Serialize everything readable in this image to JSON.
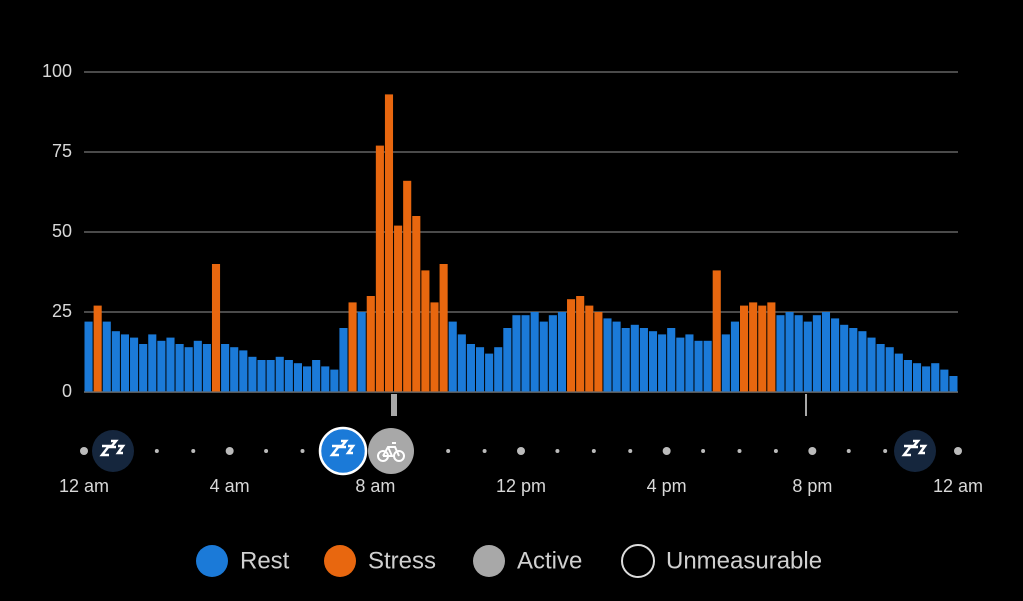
{
  "chart_data": {
    "type": "bar",
    "x": [
      0,
      0.25,
      0.5,
      0.75,
      1,
      1.25,
      1.5,
      1.75,
      2,
      2.25,
      2.5,
      2.75,
      3,
      3.25,
      3.5,
      3.75,
      4,
      4.25,
      4.5,
      4.75,
      5,
      5.25,
      5.5,
      5.75,
      6,
      6.25,
      6.5,
      6.75,
      7,
      7.25,
      7.5,
      7.75,
      8,
      8.25,
      8.5,
      8.75,
      9,
      9.25,
      9.5,
      9.75,
      10,
      10.25,
      10.5,
      10.75,
      11,
      11.25,
      11.5,
      11.75,
      12,
      12.25,
      12.5,
      12.75,
      13,
      13.25,
      13.5,
      13.75,
      14,
      14.25,
      14.5,
      14.75,
      15,
      15.25,
      15.5,
      15.75,
      16,
      16.25,
      16.5,
      16.75,
      17,
      17.25,
      17.5,
      17.75,
      18,
      18.25,
      18.5,
      18.75,
      19,
      19.25,
      19.5,
      19.75,
      20,
      20.25,
      20.5,
      20.75,
      21,
      21.25,
      21.5,
      21.75,
      22,
      22.25,
      22.5,
      22.75,
      23,
      23.25,
      23.5,
      23.75
    ],
    "series": [
      {
        "name": "Rest",
        "color": "#1b7ad8",
        "values": [
          22,
          null,
          22,
          19,
          18,
          17,
          15,
          18,
          16,
          17,
          15,
          14,
          16,
          15,
          null,
          15,
          14,
          13,
          11,
          10,
          10,
          11,
          10,
          9,
          8,
          10,
          8,
          7,
          20,
          null,
          25,
          null,
          null,
          null,
          null,
          null,
          null,
          null,
          null,
          null,
          22,
          18,
          15,
          14,
          12,
          14,
          20,
          24,
          24,
          25,
          22,
          24,
          25,
          null,
          null,
          null,
          null,
          23,
          22,
          20,
          21,
          20,
          19,
          18,
          20,
          17,
          18,
          16,
          16,
          null,
          18,
          22,
          null,
          null,
          null,
          null,
          24,
          25,
          24,
          22,
          24,
          25,
          23,
          21,
          20,
          19,
          17,
          15,
          14,
          12,
          10,
          9,
          8,
          9,
          7,
          5
        ]
      },
      {
        "name": "Stress",
        "color": "#e8670f",
        "values": [
          null,
          27,
          null,
          null,
          null,
          null,
          null,
          null,
          null,
          null,
          null,
          null,
          null,
          null,
          40,
          null,
          null,
          null,
          null,
          null,
          null,
          null,
          null,
          null,
          null,
          null,
          null,
          null,
          null,
          28,
          null,
          30,
          77,
          93,
          52,
          66,
          55,
          38,
          28,
          40,
          null,
          null,
          null,
          null,
          null,
          null,
          null,
          null,
          null,
          null,
          null,
          null,
          null,
          29,
          30,
          27,
          25,
          null,
          null,
          null,
          null,
          null,
          null,
          null,
          null,
          null,
          null,
          null,
          null,
          38,
          null,
          null,
          27,
          28,
          27,
          28,
          null,
          null,
          null,
          null,
          null,
          null,
          null,
          null,
          null,
          null,
          null,
          null,
          null,
          null,
          null,
          null,
          null,
          null,
          null,
          null
        ]
      }
    ],
    "legend_extra": [
      {
        "name": "Active",
        "color": "#a8a8a8"
      },
      {
        "name": "Unmeasurable",
        "color": "none"
      }
    ],
    "xlim": [
      0,
      24
    ],
    "xticks": [
      {
        "value": 0,
        "label": "12 am"
      },
      {
        "value": 4,
        "label": "4 am"
      },
      {
        "value": 8,
        "label": "8 am"
      },
      {
        "value": 12,
        "label": "12 pm"
      },
      {
        "value": 16,
        "label": "4 pm"
      },
      {
        "value": 20,
        "label": "8 pm"
      },
      {
        "value": 24,
        "label": "12 am"
      }
    ],
    "ylim": [
      0,
      100
    ],
    "yticks": [
      0,
      25,
      50,
      75,
      100
    ],
    "grid": true
  }
}
